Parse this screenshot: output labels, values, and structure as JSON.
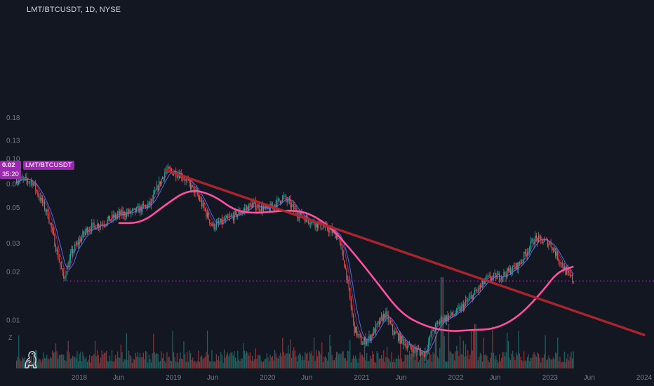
{
  "header": {
    "symbol_title": "LMT/BTCUSDT, 1D, NYSE"
  },
  "price_label": {
    "value": "0.02",
    "countdown": "35:20",
    "series_name": "LMT/BTCUSDT",
    "color": "#9c27b0"
  },
  "corner_icons": {
    "z_label": "Z",
    "logo_name": "tradingview-dino-logo"
  },
  "colors": {
    "background": "#131722",
    "axis_text": "#787b86",
    "up_candle": "#26a69a",
    "down_candle": "#ef5350",
    "ma_fast": "#5d7cff",
    "ma_slow": "#ff4fa0",
    "trendline": "#b2252d",
    "price_line": "#c231d8"
  },
  "chart_data": {
    "type": "line",
    "title": "LMT/BTCUSDT, 1D, NYSE",
    "scale": "log",
    "grid": false,
    "y_ticks": [
      0.18,
      0.13,
      0.1,
      0.07,
      0.05,
      0.03,
      0.02,
      0.01
    ],
    "y_tick_labels": [
      "0.18",
      "0.13",
      "0.10",
      "0.07",
      "0.05",
      "0.03",
      "0.02",
      "0.01"
    ],
    "x_ticks": [
      "2018",
      "Jun",
      "2019",
      "Jun",
      "2020",
      "Jun",
      "2021",
      "Jun",
      "2022",
      "Jun",
      "2023",
      "Jun",
      "2024"
    ],
    "x_tick_dates": [
      "2018-01",
      "2018-06",
      "2019-01",
      "2019-06",
      "2020-01",
      "2020-06",
      "2021-01",
      "2021-06",
      "2022-01",
      "2022-06",
      "2023-01",
      "2023-06",
      "2024-01"
    ],
    "current_price": 0.0175,
    "series": [
      {
        "type": "candlestick-approx",
        "x": [
          "2017-05",
          "2017-07",
          "2017-09",
          "2017-11",
          "2017-12",
          "2018-02",
          "2018-04",
          "2018-06",
          "2018-08",
          "2018-10",
          "2018-12",
          "2019-02",
          "2019-04",
          "2019-06",
          "2019-07",
          "2019-09",
          "2019-11",
          "2020-01",
          "2020-03",
          "2020-05",
          "2020-07",
          "2020-09",
          "2020-10",
          "2020-11",
          "2020-12",
          "2021-01",
          "2021-02",
          "2021-04",
          "2021-05",
          "2021-07",
          "2021-09",
          "2021-10",
          "2021-11",
          "2022-01",
          "2022-03",
          "2022-05",
          "2022-07",
          "2022-09",
          "2022-11",
          "2023-01",
          "2023-03",
          "2023-04"
        ],
        "y": [
          0.075,
          0.072,
          0.045,
          0.018,
          0.026,
          0.037,
          0.04,
          0.045,
          0.047,
          0.052,
          0.085,
          0.08,
          0.06,
          0.038,
          0.04,
          0.045,
          0.052,
          0.048,
          0.058,
          0.045,
          0.04,
          0.036,
          0.033,
          0.02,
          0.009,
          0.0072,
          0.0078,
          0.011,
          0.0085,
          0.0068,
          0.0062,
          0.0085,
          0.01,
          0.011,
          0.014,
          0.018,
          0.019,
          0.022,
          0.032,
          0.03,
          0.02,
          0.0175
        ]
      },
      {
        "type": "moving-average-long",
        "x": [
          "2018-06",
          "2018-09",
          "2018-12",
          "2019-03",
          "2019-06",
          "2019-09",
          "2019-12",
          "2020-03",
          "2020-06",
          "2020-09",
          "2020-12",
          "2021-03",
          "2021-06",
          "2021-09",
          "2021-12",
          "2022-03",
          "2022-06",
          "2022-09",
          "2022-12",
          "2023-02",
          "2023-04"
        ],
        "y": [
          0.04,
          0.04,
          0.052,
          0.065,
          0.06,
          0.047,
          0.046,
          0.048,
          0.047,
          0.038,
          0.026,
          0.017,
          0.011,
          0.0092,
          0.0085,
          0.0087,
          0.0088,
          0.0105,
          0.015,
          0.02,
          0.0215
        ]
      },
      {
        "type": "trendline",
        "x": [
          "2018-12",
          "2024-01"
        ],
        "y": [
          0.085,
          0.0081
        ]
      },
      {
        "type": "volume",
        "values": []
      }
    ]
  }
}
